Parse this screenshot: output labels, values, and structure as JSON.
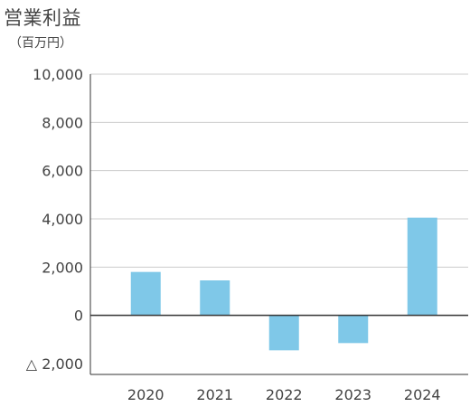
{
  "chart_data": {
    "type": "bar",
    "title": "営業利益",
    "unit_label": "（百万円）",
    "xlabel": "",
    "ylabel": "",
    "categories": [
      "2020",
      "2021",
      "2022",
      "2023",
      "2024"
    ],
    "values": [
      1800,
      1450,
      -1450,
      -1150,
      4050
    ],
    "ylim": [
      -2000,
      10000
    ],
    "yticks": [
      10000,
      8000,
      6000,
      4000,
      2000,
      0,
      -2000
    ],
    "ytick_labels": [
      "10,000",
      "8,000",
      "6,000",
      "4,000",
      "2,000",
      "0",
      "△ 2,000"
    ],
    "grid": "horizontal",
    "bar_color": "#7fc8e8",
    "grid_color": "#cccccc",
    "axis_color": "#333333"
  }
}
